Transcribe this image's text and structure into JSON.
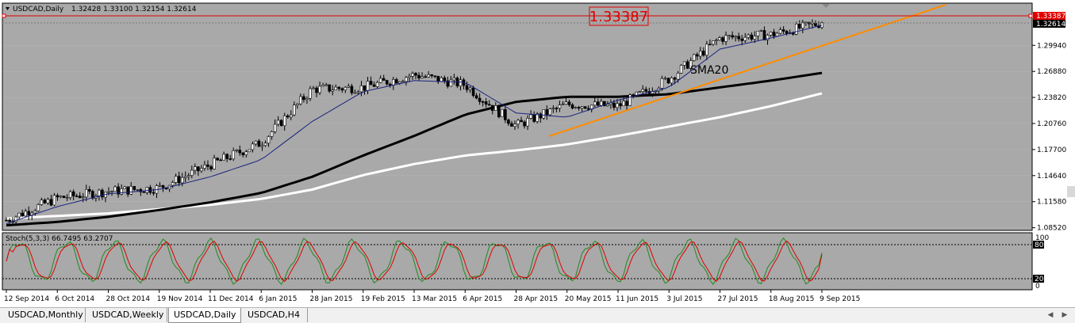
{
  "header": {
    "symbol_timeframe": "USDCAD,Daily",
    "ohlc": "1.32428 1.33100 1.32154 1.32614",
    "dropdown_icon": "triangle-down-icon"
  },
  "annotations": {
    "price_box": "1.33387",
    "sma_label": "SMA20"
  },
  "price_axis": {
    "ticks": [
      "1.29940",
      "1.26880",
      "1.23820",
      "1.20760",
      "1.17700",
      "1.14640",
      "1.11580",
      "1.08520"
    ],
    "hline_label": "1.33387",
    "current_label": "1.32614"
  },
  "indicator": {
    "header": "Stoch(5,3,3) 66.7495 63.2707",
    "levels": [
      "100",
      "80",
      "20",
      "0"
    ]
  },
  "time_axis": {
    "labels": [
      "12 Sep 2014",
      "6 Oct 2014",
      "28 Oct 2014",
      "19 Nov 2014",
      "11 Dec 2014",
      "6 Jan 2015",
      "28 Jan 2015",
      "19 Feb 2015",
      "13 Mar 2015",
      "6 Apr 2015",
      "28 Apr 2015",
      "20 May 2015",
      "11 Jun 2015",
      "3 Jul 2015",
      "27 Jul 2015",
      "18 Aug 2015",
      "9 Sep 2015"
    ]
  },
  "tabs": [
    {
      "label": "USDCAD,Monthly"
    },
    {
      "label": "USDCAD,Weekly"
    },
    {
      "label": "USDCAD,Daily"
    },
    {
      "label": "USDCAD,H4"
    }
  ],
  "colors": {
    "chart_bg": "#a9a9a9",
    "sma20": "#1a237e",
    "sma100": "#000000",
    "sma200": "#ffffff",
    "trendline": "#ff8c00",
    "stoch_main": "#1f8a1f",
    "stoch_signal": "#e00000",
    "hline": "#e00000"
  },
  "chart_data": {
    "type": "candlestick",
    "symbol": "USDCAD",
    "timeframe": "Daily",
    "last_ohlc": {
      "open": 1.32428,
      "high": 1.331,
      "low": 1.32154,
      "close": 1.32614
    },
    "horizontal_line": 1.33387,
    "ylim": [
      1.083,
      1.348
    ],
    "x": [
      "12 Sep 2014",
      "6 Oct 2014",
      "28 Oct 2014",
      "19 Nov 2014",
      "11 Dec 2014",
      "6 Jan 2015",
      "28 Jan 2015",
      "19 Feb 2015",
      "13 Mar 2015",
      "6 Apr 2015",
      "28 Apr 2015",
      "20 May 2015",
      "11 Jun 2015",
      "3 Jul 2015",
      "27 Jul 2015",
      "18 Aug 2015",
      "9 Sep 2015"
    ],
    "close_approx": [
      1.094,
      1.12,
      1.128,
      1.132,
      1.159,
      1.185,
      1.248,
      1.25,
      1.265,
      1.253,
      1.205,
      1.23,
      1.228,
      1.26,
      1.308,
      1.312,
      1.326
    ],
    "series": [
      {
        "name": "SMA20",
        "values": [
          1.09,
          1.11,
          1.125,
          1.13,
          1.145,
          1.165,
          1.21,
          1.245,
          1.258,
          1.256,
          1.22,
          1.215,
          1.235,
          1.25,
          1.295,
          1.308,
          1.323
        ]
      },
      {
        "name": "",
        "values": [
          1.088,
          1.092,
          1.098,
          1.106,
          1.115,
          1.126,
          1.145,
          1.17,
          1.193,
          1.218,
          1.233,
          1.239,
          1.239,
          1.242,
          1.25,
          1.258,
          1.267
        ]
      },
      {
        "name": "",
        "values": [
          1.096,
          1.099,
          1.102,
          1.107,
          1.112,
          1.119,
          1.13,
          1.147,
          1.16,
          1.17,
          1.176,
          1.183,
          1.193,
          1.204,
          1.215,
          1.228,
          1.243
        ]
      }
    ]
  }
}
